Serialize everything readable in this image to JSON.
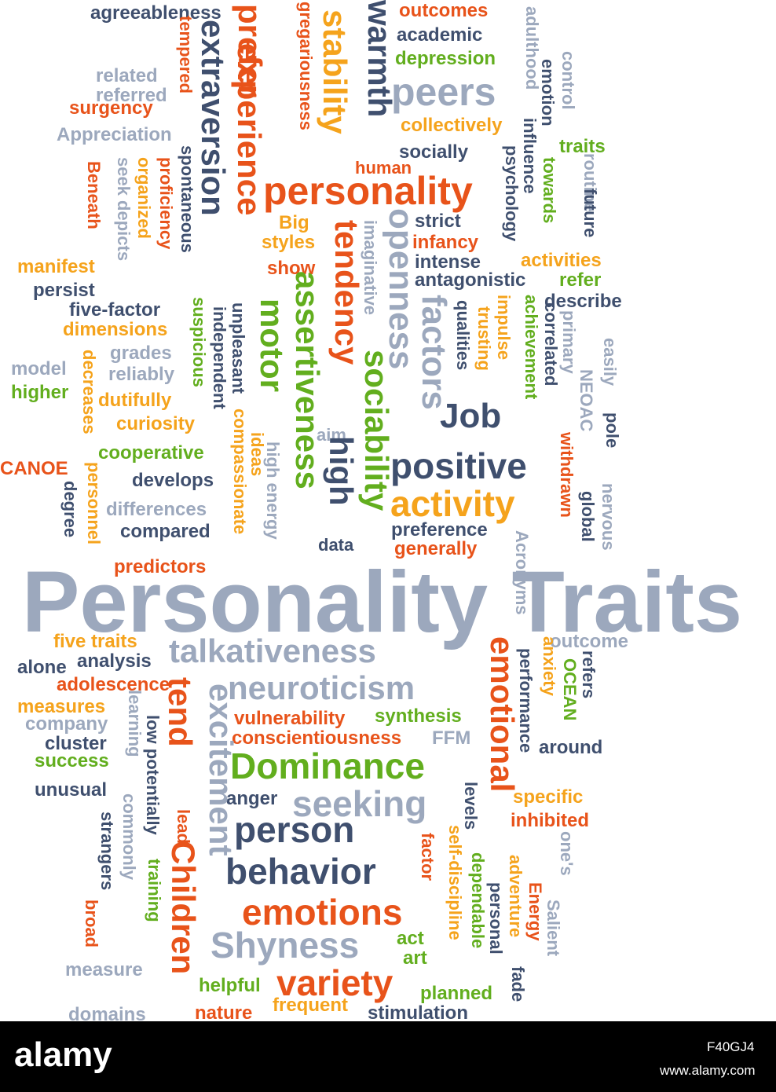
{
  "colors": {
    "slate": "#3f4f6e",
    "gray": "#9ca8bd",
    "orange": "#e8531a",
    "amber": "#f5a31c",
    "green": "#62ae1e"
  },
  "words": [
    {
      "t": "Personality Traits",
      "c": "gray",
      "s": 110
    },
    {
      "t": "agreeableness",
      "c": "slate",
      "s": 24
    },
    {
      "t": "outcomes",
      "c": "orange",
      "s": 24
    },
    {
      "t": "academic",
      "c": "slate",
      "s": 24
    },
    {
      "t": "depression",
      "c": "green",
      "s": 24
    },
    {
      "t": "peers",
      "c": "gray",
      "s": 50
    },
    {
      "t": "collectively",
      "c": "amber",
      "s": 24
    },
    {
      "t": "socially",
      "c": "slate",
      "s": 24
    },
    {
      "t": "human",
      "c": "orange",
      "s": 22
    },
    {
      "t": "traits",
      "c": "green",
      "s": 24
    },
    {
      "t": "related",
      "c": "gray",
      "s": 24
    },
    {
      "t": "referred",
      "c": "gray",
      "s": 24
    },
    {
      "t": "surgency",
      "c": "orange",
      "s": 24
    },
    {
      "t": "Appreciation",
      "c": "gray",
      "s": 24
    },
    {
      "t": "personality",
      "c": "orange",
      "s": 50
    },
    {
      "t": "Big",
      "c": "amber",
      "s": 24
    },
    {
      "t": "styles",
      "c": "amber",
      "s": 24
    },
    {
      "t": "show",
      "c": "orange",
      "s": 24
    },
    {
      "t": "strict",
      "c": "slate",
      "s": 24
    },
    {
      "t": "infancy",
      "c": "orange",
      "s": 24
    },
    {
      "t": "intense",
      "c": "slate",
      "s": 24
    },
    {
      "t": "antagonistic",
      "c": "slate",
      "s": 24
    },
    {
      "t": "activities",
      "c": "amber",
      "s": 24
    },
    {
      "t": "refer",
      "c": "green",
      "s": 24
    },
    {
      "t": "describe",
      "c": "slate",
      "s": 24
    },
    {
      "t": "manifest",
      "c": "amber",
      "s": 24
    },
    {
      "t": "persist",
      "c": "slate",
      "s": 24
    },
    {
      "t": "five-factor",
      "c": "slate",
      "s": 24
    },
    {
      "t": "dimensions",
      "c": "amber",
      "s": 24
    },
    {
      "t": "grades",
      "c": "gray",
      "s": 24
    },
    {
      "t": "reliably",
      "c": "gray",
      "s": 24
    },
    {
      "t": "model",
      "c": "gray",
      "s": 24
    },
    {
      "t": "higher",
      "c": "green",
      "s": 24
    },
    {
      "t": "dutifully",
      "c": "amber",
      "s": 24
    },
    {
      "t": "curiosity",
      "c": "amber",
      "s": 24
    },
    {
      "t": "Job",
      "c": "slate",
      "s": 44
    },
    {
      "t": "aim",
      "c": "gray",
      "s": 22
    },
    {
      "t": "cooperative",
      "c": "green",
      "s": 24
    },
    {
      "t": "CANOE",
      "c": "orange",
      "s": 24
    },
    {
      "t": "develops",
      "c": "slate",
      "s": 24
    },
    {
      "t": "positive",
      "c": "slate",
      "s": 46
    },
    {
      "t": "activity",
      "c": "amber",
      "s": 46
    },
    {
      "t": "differences",
      "c": "gray",
      "s": 24
    },
    {
      "t": "compared",
      "c": "slate",
      "s": 24
    },
    {
      "t": "preference",
      "c": "slate",
      "s": 24
    },
    {
      "t": "generally",
      "c": "orange",
      "s": 24
    },
    {
      "t": "predictors",
      "c": "orange",
      "s": 24
    },
    {
      "t": "data",
      "c": "slate",
      "s": 22
    },
    {
      "t": "five traits",
      "c": "amber",
      "s": 24
    },
    {
      "t": "analysis",
      "c": "slate",
      "s": 24
    },
    {
      "t": "alone",
      "c": "slate",
      "s": 24
    },
    {
      "t": "adolescence",
      "c": "orange",
      "s": 24
    },
    {
      "t": "talkativeness",
      "c": "gray",
      "s": 42
    },
    {
      "t": "outcome",
      "c": "gray",
      "s": 24
    },
    {
      "t": "neuroticism",
      "c": "gray",
      "s": 42
    },
    {
      "t": "measures",
      "c": "amber",
      "s": 24
    },
    {
      "t": "company",
      "c": "gray",
      "s": 24
    },
    {
      "t": "cluster",
      "c": "slate",
      "s": 24
    },
    {
      "t": "success",
      "c": "green",
      "s": 24
    },
    {
      "t": "vulnerability",
      "c": "orange",
      "s": 24
    },
    {
      "t": "synthesis",
      "c": "green",
      "s": 24
    },
    {
      "t": "conscientiousness",
      "c": "orange",
      "s": 24
    },
    {
      "t": "FFM",
      "c": "gray",
      "s": 24
    },
    {
      "t": "around",
      "c": "slate",
      "s": 24
    },
    {
      "t": "Dominance",
      "c": "green",
      "s": 46
    },
    {
      "t": "unusual",
      "c": "slate",
      "s": 24
    },
    {
      "t": "anger",
      "c": "slate",
      "s": 24
    },
    {
      "t": "seeking",
      "c": "gray",
      "s": 46
    },
    {
      "t": "specific",
      "c": "amber",
      "s": 24
    },
    {
      "t": "inhibited",
      "c": "orange",
      "s": 24
    },
    {
      "t": "person",
      "c": "slate",
      "s": 46
    },
    {
      "t": "behavior",
      "c": "slate",
      "s": 46
    },
    {
      "t": "emotions",
      "c": "orange",
      "s": 46
    },
    {
      "t": "Shyness",
      "c": "gray",
      "s": 46
    },
    {
      "t": "act",
      "c": "green",
      "s": 24
    },
    {
      "t": "art",
      "c": "green",
      "s": 24
    },
    {
      "t": "measure",
      "c": "gray",
      "s": 24
    },
    {
      "t": "helpful",
      "c": "green",
      "s": 24
    },
    {
      "t": "variety",
      "c": "orange",
      "s": 46
    },
    {
      "t": "planned",
      "c": "green",
      "s": 24
    },
    {
      "t": "domains",
      "c": "gray",
      "s": 24
    },
    {
      "t": "nature",
      "c": "orange",
      "s": 24
    },
    {
      "t": "frequent",
      "c": "amber",
      "s": 24
    },
    {
      "t": "stimulation",
      "c": "slate",
      "s": 24
    },
    {
      "t": "extraversion",
      "c": "slate",
      "s": 42
    },
    {
      "t": "prefer",
      "c": "orange",
      "s": 42
    },
    {
      "t": "experience",
      "c": "orange",
      "s": 42
    },
    {
      "t": "gregariousness",
      "c": "orange",
      "s": 22
    },
    {
      "t": "stability",
      "c": "amber",
      "s": 42
    },
    {
      "t": "warmth",
      "c": "slate",
      "s": 42
    },
    {
      "t": "tempered",
      "c": "orange",
      "s": 22
    },
    {
      "t": "adulthood",
      "c": "gray",
      "s": 22
    },
    {
      "t": "control",
      "c": "gray",
      "s": 22
    },
    {
      "t": "emotion",
      "c": "slate",
      "s": 22
    },
    {
      "t": "influence",
      "c": "slate",
      "s": 22
    },
    {
      "t": "psychology",
      "c": "slate",
      "s": 22
    },
    {
      "t": "towards",
      "c": "green",
      "s": 22
    },
    {
      "t": "routine",
      "c": "gray",
      "s": 22
    },
    {
      "t": "future",
      "c": "slate",
      "s": 22
    },
    {
      "t": "spontaneous",
      "c": "slate",
      "s": 22
    },
    {
      "t": "proficiency",
      "c": "orange",
      "s": 22
    },
    {
      "t": "organized",
      "c": "amber",
      "s": 22
    },
    {
      "t": "seek depicts",
      "c": "gray",
      "s": 22
    },
    {
      "t": "Beneath",
      "c": "orange",
      "s": 22
    },
    {
      "t": "openness",
      "c": "gray",
      "s": 44
    },
    {
      "t": "factors",
      "c": "gray",
      "s": 44
    },
    {
      "t": "tendency",
      "c": "orange",
      "s": 42
    },
    {
      "t": "imaginative",
      "c": "gray",
      "s": 22
    },
    {
      "t": "assertiveness",
      "c": "green",
      "s": 42
    },
    {
      "t": "sociability",
      "c": "green",
      "s": 42
    },
    {
      "t": "motor",
      "c": "green",
      "s": 42
    },
    {
      "t": "high",
      "c": "slate",
      "s": 42
    },
    {
      "t": "unpleasant",
      "c": "slate",
      "s": 22
    },
    {
      "t": "independent",
      "c": "slate",
      "s": 22
    },
    {
      "t": "suspicious",
      "c": "green",
      "s": 22
    },
    {
      "t": "qualities",
      "c": "slate",
      "s": 22
    },
    {
      "t": "impulse",
      "c": "amber",
      "s": 22
    },
    {
      "t": "trusting",
      "c": "amber",
      "s": 22
    },
    {
      "t": "achievement",
      "c": "green",
      "s": 22
    },
    {
      "t": "correlated",
      "c": "slate",
      "s": 22
    },
    {
      "t": "primary",
      "c": "gray",
      "s": 22
    },
    {
      "t": "NEOAC",
      "c": "gray",
      "s": 22
    },
    {
      "t": "easily",
      "c": "gray",
      "s": 22
    },
    {
      "t": "pole",
      "c": "slate",
      "s": 22
    },
    {
      "t": "decreases",
      "c": "amber",
      "s": 22
    },
    {
      "t": "personnel",
      "c": "amber",
      "s": 22
    },
    {
      "t": "degree",
      "c": "slate",
      "s": 22
    },
    {
      "t": "compassionate",
      "c": "amber",
      "s": 22
    },
    {
      "t": "ideas",
      "c": "amber",
      "s": 22
    },
    {
      "t": "high energy",
      "c": "gray",
      "s": 22
    },
    {
      "t": "withdrawn",
      "c": "orange",
      "s": 22
    },
    {
      "t": "global",
      "c": "slate",
      "s": 22
    },
    {
      "t": "nervous",
      "c": "gray",
      "s": 22
    },
    {
      "t": "Acronyms",
      "c": "gray",
      "s": 22
    },
    {
      "t": "emotional",
      "c": "orange",
      "s": 42
    },
    {
      "t": "performance",
      "c": "slate",
      "s": 22
    },
    {
      "t": "anxiety",
      "c": "amber",
      "s": 22
    },
    {
      "t": "OCEAN",
      "c": "green",
      "s": 22
    },
    {
      "t": "refers",
      "c": "slate",
      "s": 22
    },
    {
      "t": "tend",
      "c": "orange",
      "s": 42
    },
    {
      "t": "excitement",
      "c": "gray",
      "s": 42
    },
    {
      "t": "Children",
      "c": "orange",
      "s": 42
    },
    {
      "t": "learning",
      "c": "gray",
      "s": 22
    },
    {
      "t": "low potentially",
      "c": "slate",
      "s": 22
    },
    {
      "t": "lead",
      "c": "orange",
      "s": 22
    },
    {
      "t": "commonly",
      "c": "gray",
      "s": 22
    },
    {
      "t": "strangers",
      "c": "slate",
      "s": 22
    },
    {
      "t": "training",
      "c": "green",
      "s": 22
    },
    {
      "t": "broad",
      "c": "orange",
      "s": 22
    },
    {
      "t": "levels",
      "c": "slate",
      "s": 22
    },
    {
      "t": "factor",
      "c": "orange",
      "s": 22
    },
    {
      "t": "self-discipline",
      "c": "amber",
      "s": 22
    },
    {
      "t": "dependable",
      "c": "green",
      "s": 22
    },
    {
      "t": "personal",
      "c": "slate",
      "s": 22
    },
    {
      "t": "adventure",
      "c": "amber",
      "s": 22
    },
    {
      "t": "Energy",
      "c": "orange",
      "s": 22
    },
    {
      "t": "one's",
      "c": "gray",
      "s": 22
    },
    {
      "t": "Salient",
      "c": "gray",
      "s": 22
    },
    {
      "t": "fade",
      "c": "slate",
      "s": 22
    }
  ],
  "footer": {
    "logo_text": "alamy",
    "image_code": "F40GJ4",
    "url": "www.alamy.com"
  }
}
